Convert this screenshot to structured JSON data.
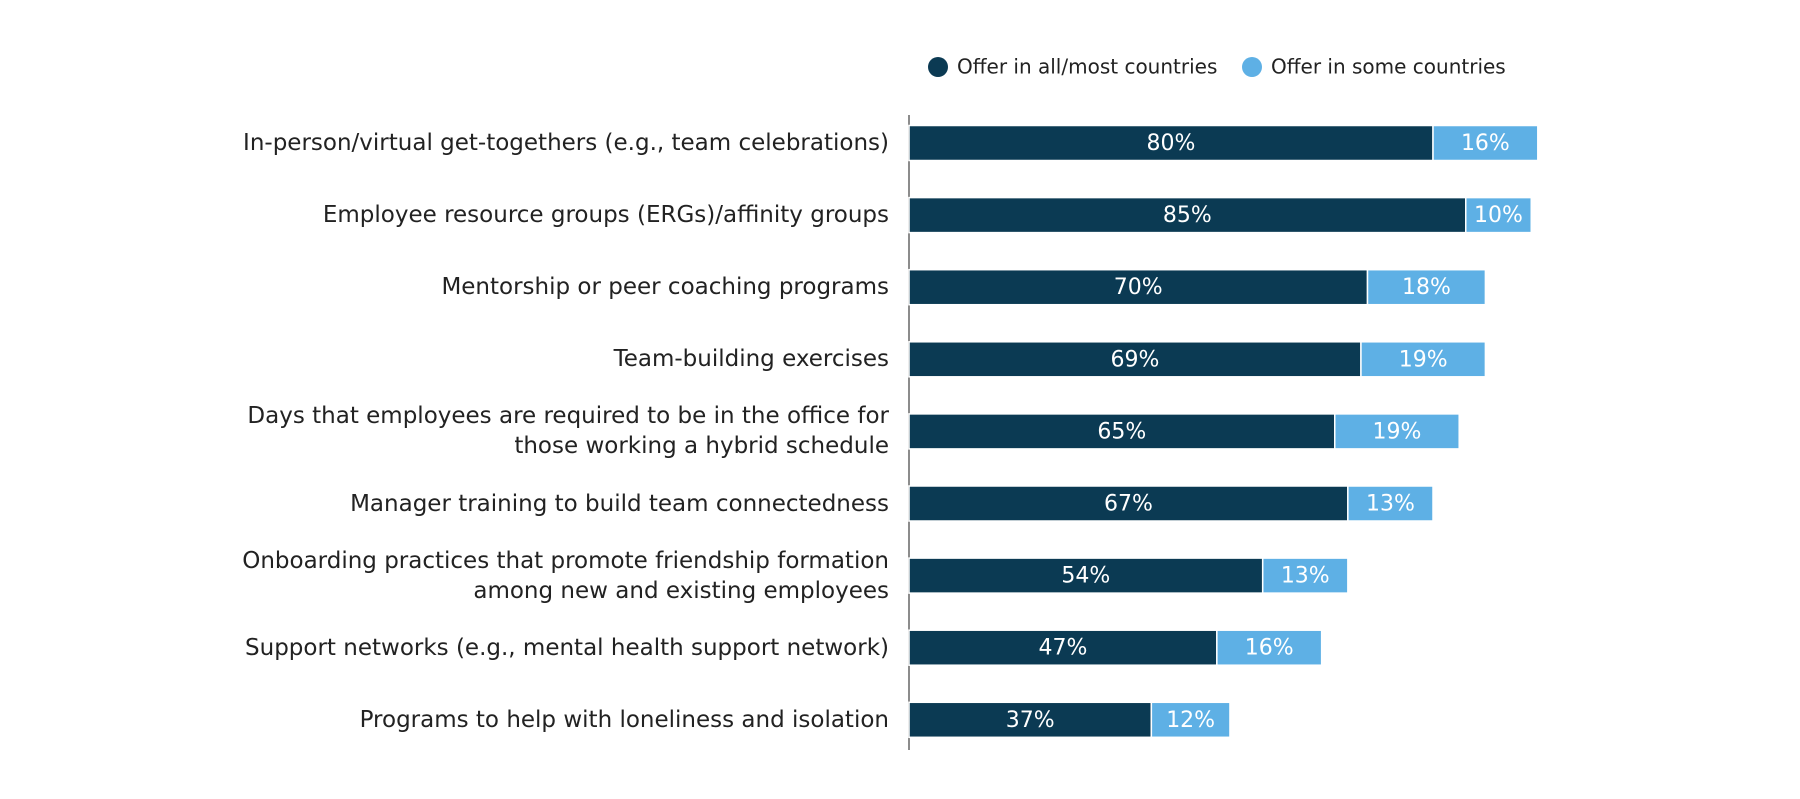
{
  "chart_data": {
    "type": "stacked-bar-horizontal",
    "categories": [
      "In-person/virtual get-togethers (e.g., team celebrations)",
      "Employee resource groups (ERGs)/affinity groups",
      "Mentorship or peer coaching programs",
      "Team-building exercises",
      "Days that employees are required to be in the office for\nthose working a hybrid schedule",
      "Manager training to build team connectedness",
      "Onboarding practices that promote friendship formation\namong new and existing employees",
      "Support networks (e.g., mental health support network)",
      "Programs to help with loneliness and isolation"
    ],
    "series": [
      {
        "name": "Offer in all/most countries",
        "color": "#0b3a53",
        "values": [
          80,
          85,
          70,
          69,
          65,
          67,
          54,
          47,
          37
        ],
        "value_labels": [
          "80%",
          "85%",
          "70%",
          "69%",
          "65%",
          "67%",
          "54%",
          "47%",
          "37%"
        ]
      },
      {
        "name": "Offer in some countries",
        "color": "#5eb0e5",
        "values": [
          16,
          10,
          18,
          19,
          19,
          13,
          13,
          16,
          12
        ],
        "value_labels": [
          "16%",
          "10%",
          "18%",
          "19%",
          "19%",
          "13%",
          "13%",
          "16%",
          "12%"
        ]
      }
    ],
    "legend": "top"
  }
}
